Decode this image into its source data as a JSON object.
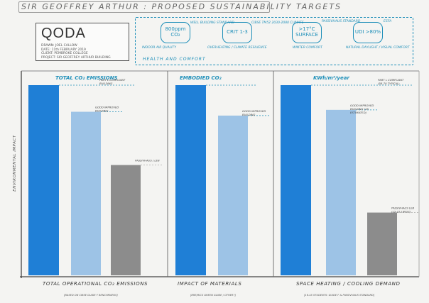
{
  "title": "SIR GEOFFREY ARTHUR : PROPOSED SUSTAINABILITY TARGETS",
  "project": {
    "logo": "QODA",
    "drawn": "DRAWN: JOEL CALLOW",
    "date": "DATE: 11th FEBRUARY 2019",
    "client": "CLIENT: PEMBROKE COLLEGE",
    "project": "PROJECT: SIR GEOFFREY ARTHUR BUILDING"
  },
  "targets": {
    "heading": "HEALTH AND COMFORT",
    "items": [
      {
        "value": "800ppm CO₂",
        "note": "WELL BUILDING STANDARD",
        "caption": "INDOOR AIR QUALITY"
      },
      {
        "value": "CRIT 1-3",
        "note": "CIBSE TM52 2030-2080 CLIMATE",
        "caption": "OVERHEATING / CLIMATE RESILIENCE"
      },
      {
        "value": ">17°C SURFACE",
        "note": "PASSIVHAUS STANDARD",
        "caption": "WINTER COMFORT"
      },
      {
        "value": "UDI >80%",
        "note": "ESFA",
        "caption": "NATURAL DAYLIGHT / VISUAL COMFORT"
      }
    ]
  },
  "colors": {
    "part_l": "#1f7fd6",
    "good": "#9dc3e6",
    "passivhaus": "#8c8c8c",
    "accent": "#1e8fb9"
  },
  "chart_data": {
    "type": "bar",
    "ylabel": "ENVIRONMENTAL IMPACT",
    "ylim": [
      0,
      100
    ],
    "series": [
      "Part L compliant building",
      "Good improved building",
      "Passivhaus / LEB"
    ],
    "panels": [
      {
        "header": "TOTAL CO₂ EMISSIONS",
        "xlabel": "TOTAL OPERATIONAL CO₂ EMISSIONS",
        "footnote": "[BASED ON CIBSE GUIDE F BENCHMARKS]",
        "values": [
          100,
          86,
          58
        ],
        "labels": [
          "PART L COMPLIANT BUILDING",
          "GOOD IMPROVED BUILDING",
          "PASSIVHAUS / LEB"
        ]
      },
      {
        "header": "EMBODIED CO₂",
        "xlabel": "IMPACT OF MATERIALS",
        "footnote": "[BRE/RICS GREEN GUIDE / OTHER?]",
        "values": [
          100,
          84
        ],
        "labels": [
          "",
          "GOOD IMPROVED BUILDING"
        ]
      },
      {
        "header": "KWh/m²/year",
        "xlabel": "SPACE HEATING / COOLING DEMAND",
        "footnote": "[16-45 STUDENTS: GUIDE F & PASSIVHAUS STANDARD]",
        "values": [
          100,
          87,
          33
        ],
        "labels": [
          "PART L COMPLIANT (56-70 TYPICAL)",
          "GOOD IMPROVED BUILDING (45 ESTIMATED)",
          "PASSIVHAUS LEB (15-25 LIKELY)"
        ]
      }
    ]
  }
}
